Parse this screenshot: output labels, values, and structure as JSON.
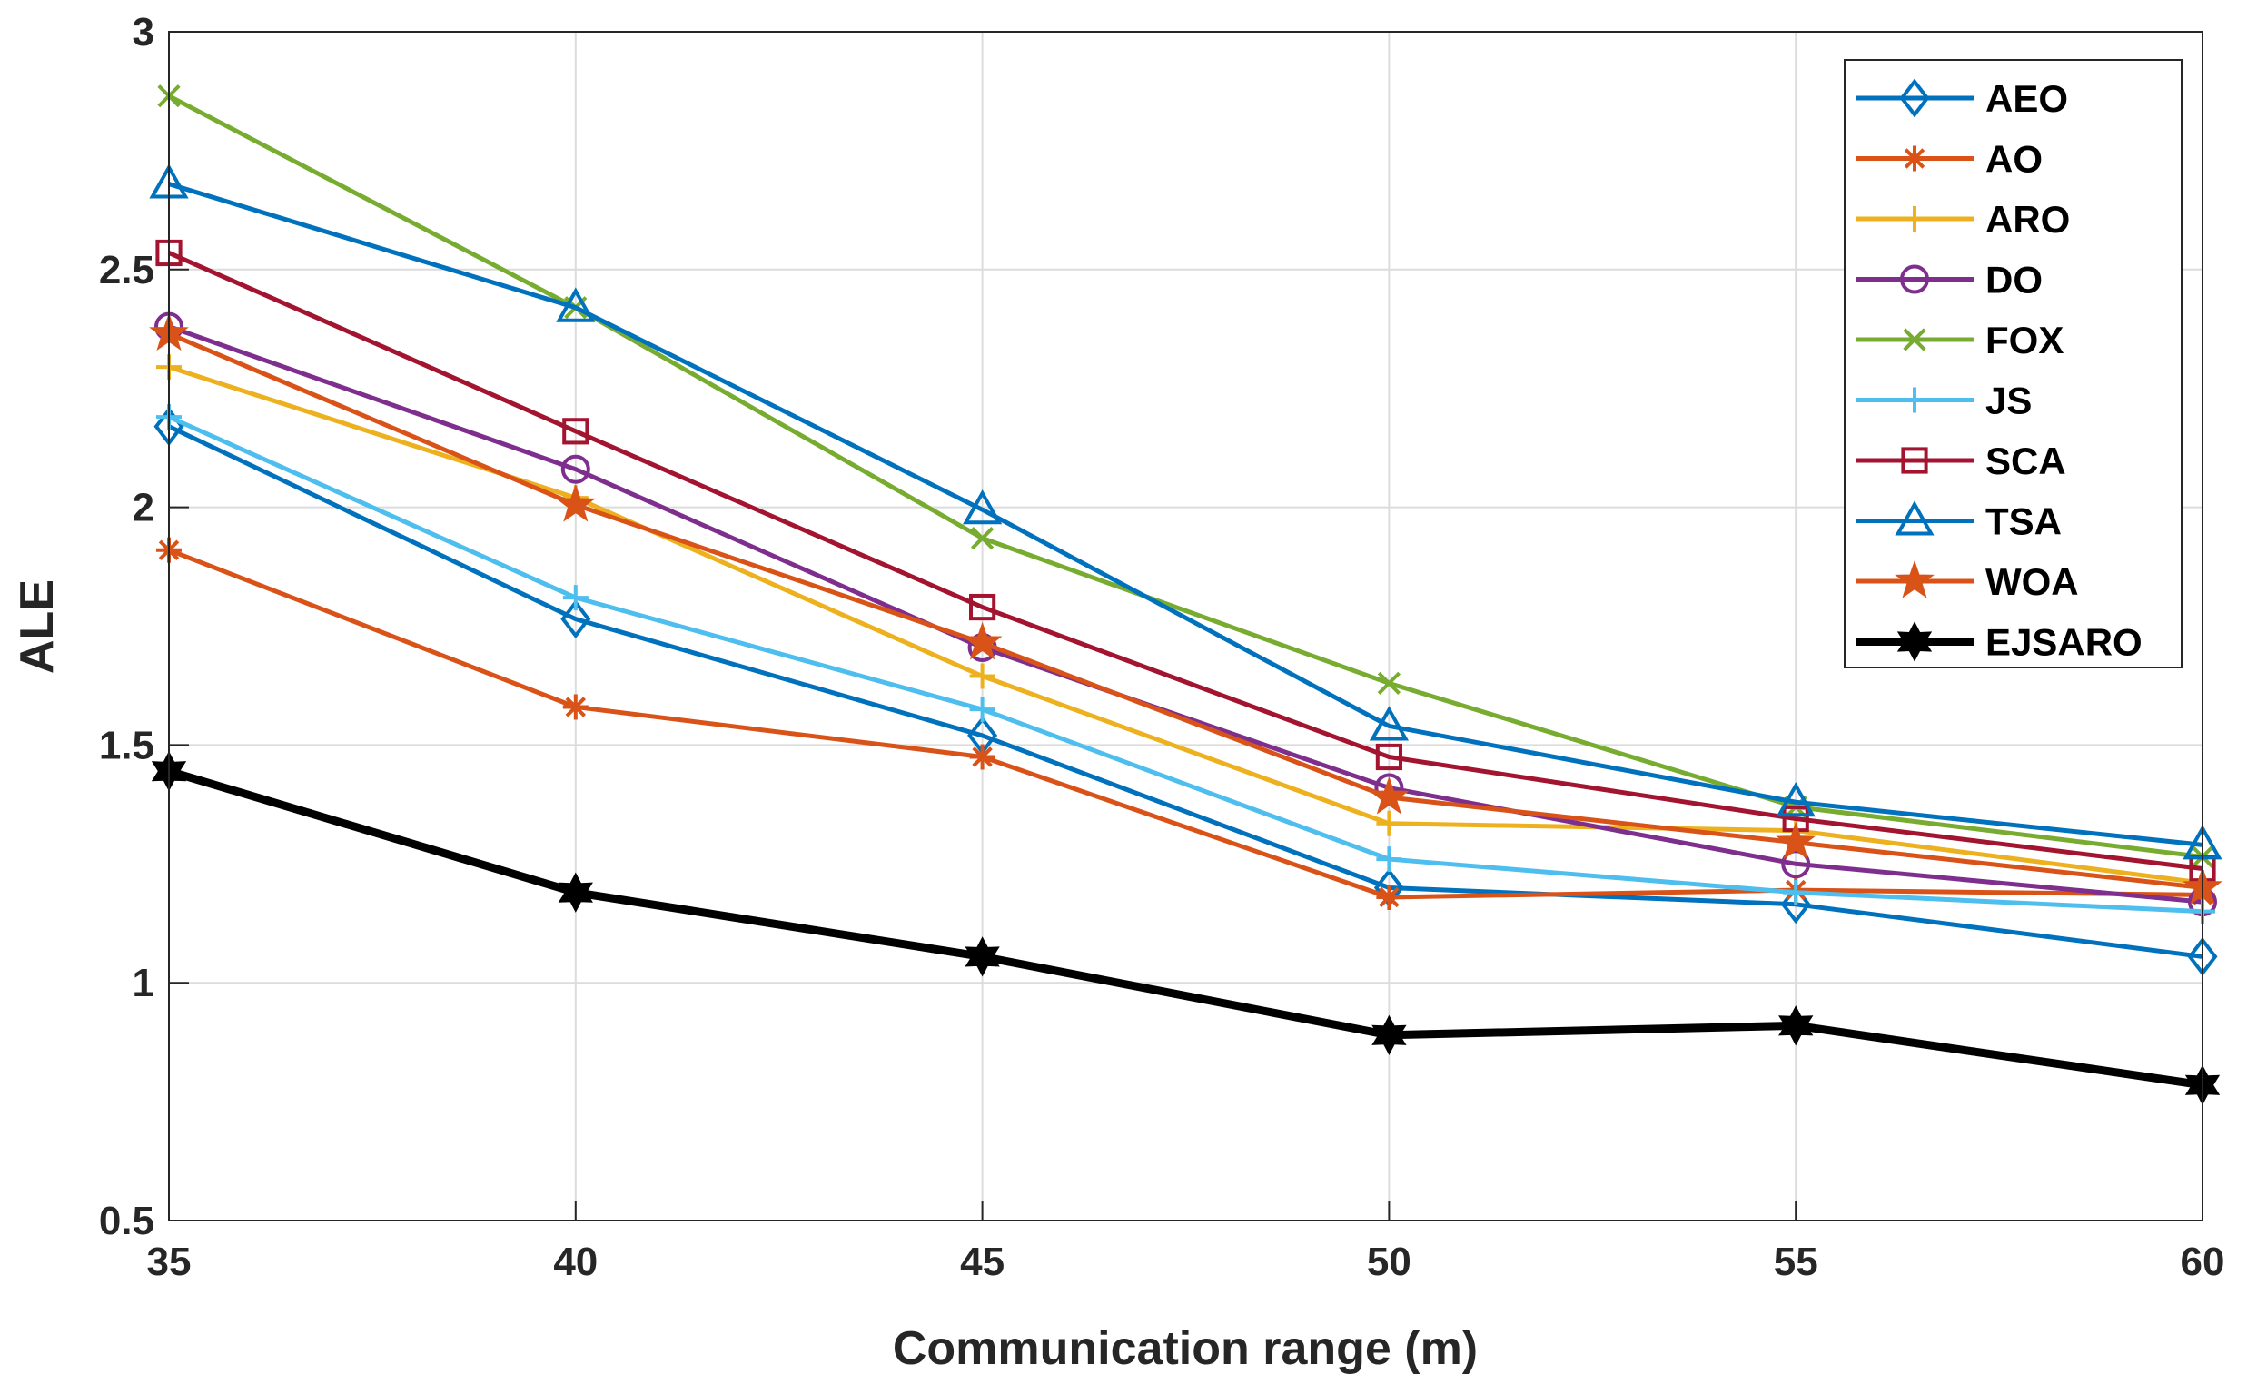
{
  "chart_data": {
    "type": "line",
    "title": "",
    "xlabel": "Communication range (m)",
    "ylabel": "ALE",
    "x": [
      35,
      40,
      45,
      50,
      55,
      60
    ],
    "xlim": [
      35,
      60
    ],
    "ylim": [
      0.5,
      3
    ],
    "xticks": [
      "35",
      "40",
      "45",
      "50",
      "55",
      "60"
    ],
    "yticks": [
      "0.5",
      "1",
      "1.5",
      "2",
      "2.5",
      "3"
    ],
    "grid": true,
    "legend_position": "top-right",
    "series": [
      {
        "name": "AEO",
        "color": "#0072BD",
        "marker": "diamond",
        "values": [
          2.17,
          1.765,
          1.52,
          1.2,
          1.165,
          1.055
        ]
      },
      {
        "name": "AO",
        "color": "#D95319",
        "marker": "asterisk",
        "values": [
          1.91,
          1.58,
          1.475,
          1.18,
          1.195,
          1.185
        ]
      },
      {
        "name": "ARO",
        "color": "#EDB120",
        "marker": "plus",
        "values": [
          2.295,
          2.02,
          1.645,
          1.335,
          1.32,
          1.21
        ]
      },
      {
        "name": "DO",
        "color": "#7E2F8E",
        "marker": "circle",
        "values": [
          2.38,
          2.08,
          1.705,
          1.41,
          1.25,
          1.17
        ]
      },
      {
        "name": "FOX",
        "color": "#77AC30",
        "marker": "x",
        "values": [
          2.865,
          2.42,
          1.935,
          1.63,
          1.37,
          1.265
        ]
      },
      {
        "name": "JS",
        "color": "#4DBEEE",
        "marker": "plus",
        "values": [
          2.19,
          1.81,
          1.575,
          1.26,
          1.19,
          1.15
        ]
      },
      {
        "name": "SCA",
        "color": "#A2142F",
        "marker": "square",
        "values": [
          2.535,
          2.16,
          1.79,
          1.475,
          1.345,
          1.24
        ]
      },
      {
        "name": "TSA",
        "color": "#0072BD",
        "marker": "triangle",
        "values": [
          2.68,
          2.42,
          1.995,
          1.54,
          1.38,
          1.29
        ]
      },
      {
        "name": "WOA",
        "color": "#D95319",
        "marker": "star",
        "values": [
          2.365,
          2.005,
          1.715,
          1.39,
          1.295,
          1.2
        ]
      },
      {
        "name": "EJSARO",
        "color": "#000000",
        "marker": "hexagram",
        "values": [
          1.445,
          1.19,
          1.055,
          0.89,
          0.91,
          0.785
        ]
      }
    ]
  }
}
